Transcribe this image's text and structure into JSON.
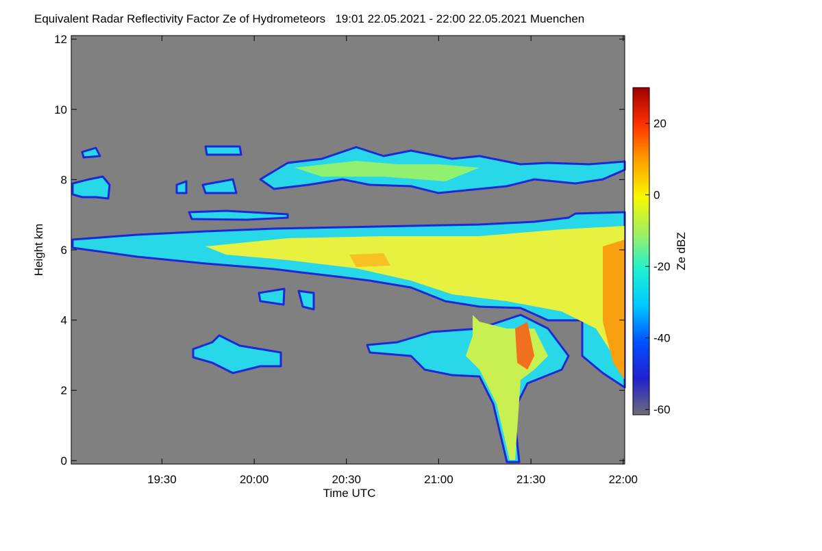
{
  "chart_data": {
    "type": "heatmap",
    "title": "Equivalent Radar Reflectivity Factor Ze of Hydrometeors   19:01 22.05.2021 - 22:00 22.05.2021 Muenchen",
    "x_label": "Time UTC",
    "y_label": "Height km",
    "xlim": [
      1140.5,
      1320.5
    ],
    "xticks": [
      {
        "value": 1170,
        "label": "19:30"
      },
      {
        "value": 1200,
        "label": "20:00"
      },
      {
        "value": 1230,
        "label": "20:30"
      },
      {
        "value": 1260,
        "label": "21:00"
      },
      {
        "value": 1290,
        "label": "21:30"
      },
      {
        "value": 1320,
        "label": "22:00"
      }
    ],
    "ylim": [
      -0.1,
      12.1
    ],
    "yticks": [
      0,
      2,
      4,
      6,
      8,
      10,
      12
    ],
    "colorbar_label": "Ze dBZ",
    "clim": [
      -61.5,
      30
    ],
    "cticks": [
      -60,
      -40,
      -20,
      0,
      20
    ],
    "colormap": [
      "#6e6e78",
      "#2020d0",
      "#0050ff",
      "#00c8ff",
      "#20f0d0",
      "#a0f060",
      "#f8f800",
      "#ffa000",
      "#ff3000",
      "#a00000"
    ],
    "background": "#808080"
  }
}
